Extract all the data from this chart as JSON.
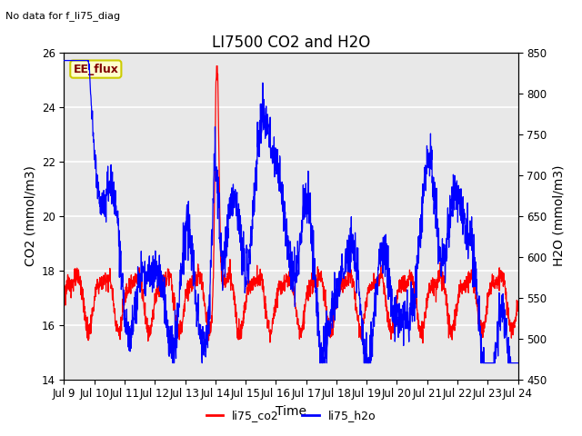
{
  "title": "LI7500 CO2 and H2O",
  "top_left_text": "No data for f_li75_diag",
  "xlabel": "Time",
  "ylabel_left": "CO2 (mmol/m3)",
  "ylabel_right": "H2O (mmol/m3)",
  "ylim_left": [
    14,
    26
  ],
  "ylim_right": [
    450,
    850
  ],
  "yticks_left": [
    14,
    16,
    18,
    20,
    22,
    24,
    26
  ],
  "yticks_right": [
    450,
    500,
    550,
    600,
    650,
    700,
    750,
    800,
    850
  ],
  "xtick_labels": [
    "Jul 9",
    "Jul 10",
    "Jul 11",
    "Jul 12",
    "Jul 13",
    "Jul 14",
    "Jul 15",
    "Jul 16",
    "Jul 17",
    "Jul 18",
    "Jul 19",
    "Jul 20",
    "Jul 21",
    "Jul 22",
    "Jul 23",
    "Jul 24"
  ],
  "ee_flux_label": "EE_flux",
  "ee_flux_bg": "#ffffcc",
  "ee_flux_border": "#cccc00",
  "ee_flux_text_color": "#800000",
  "plot_bg_color": "#e8e8e8",
  "grid_color": "white",
  "co2_color": "red",
  "h2o_color": "blue",
  "title_fontsize": 12,
  "label_fontsize": 10,
  "tick_fontsize": 8.5
}
